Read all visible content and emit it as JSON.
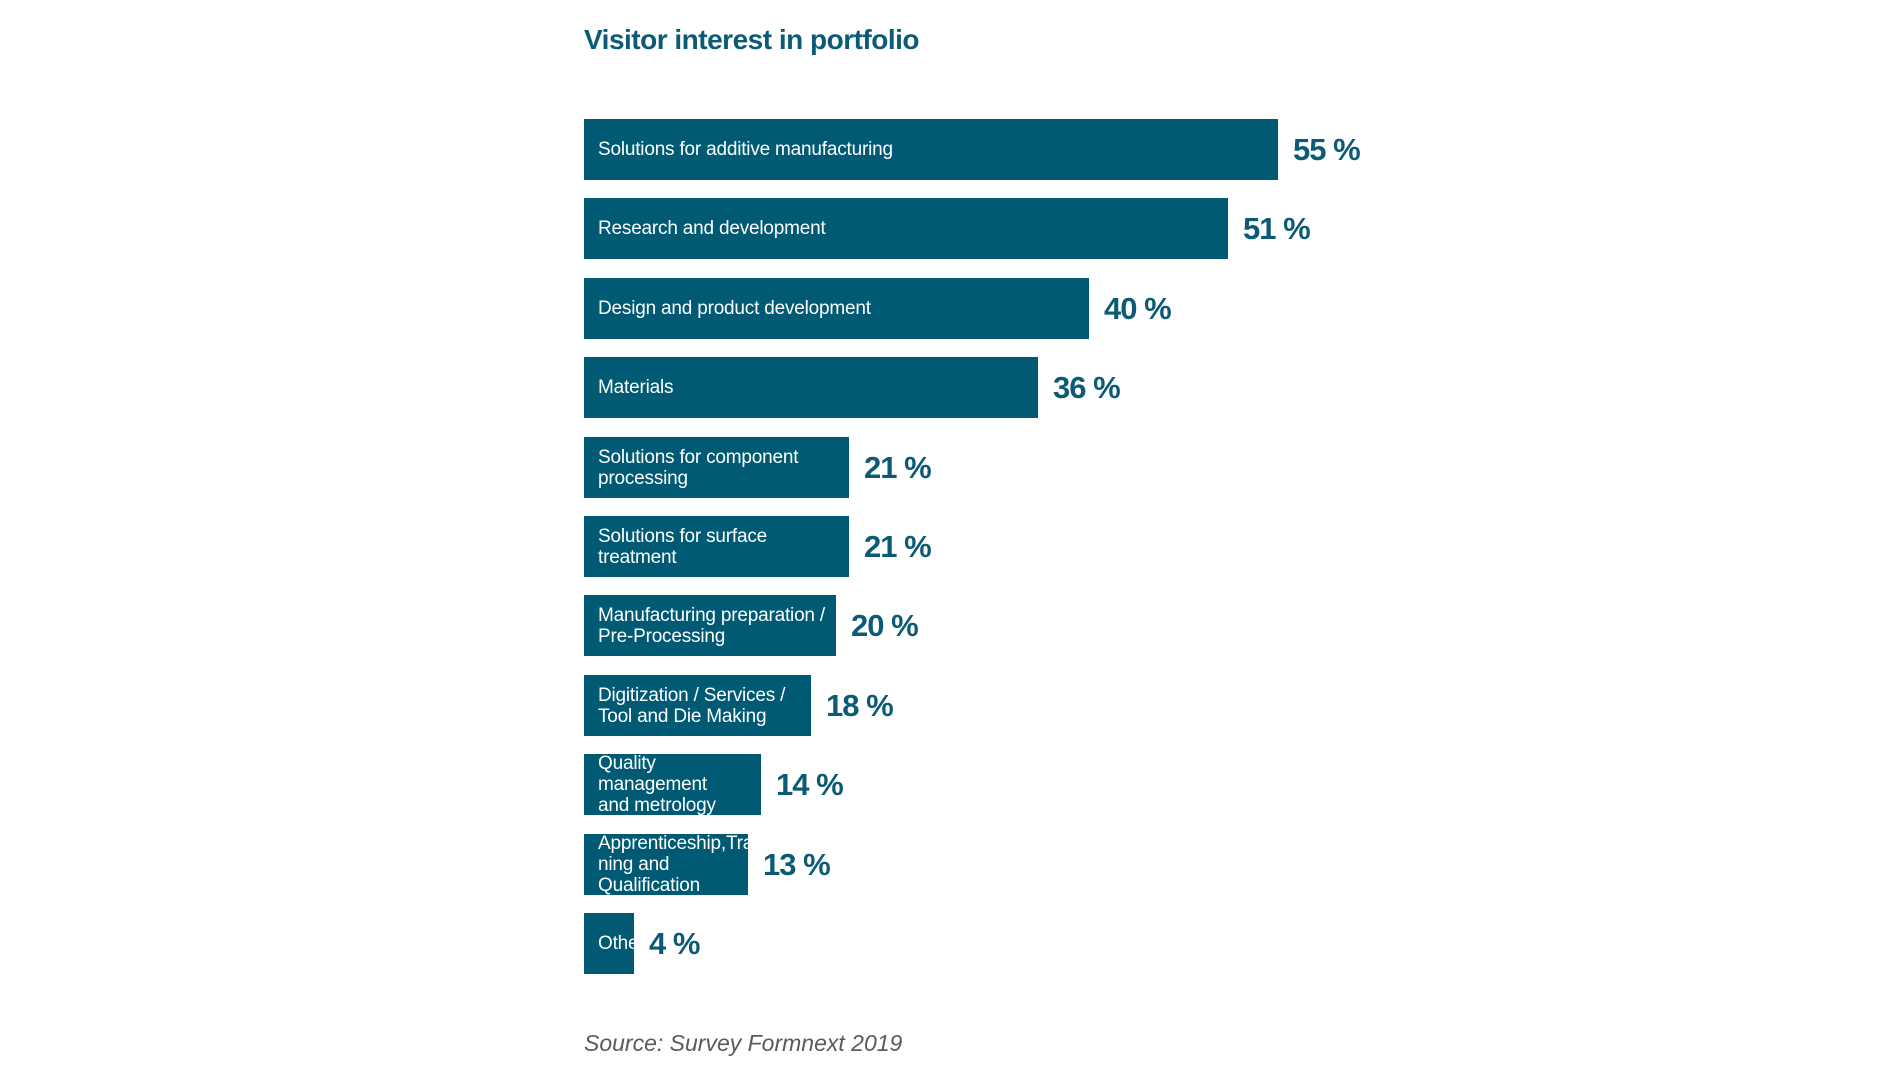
{
  "colors": {
    "bar": "#005a74",
    "title": "#0b5b76",
    "value": "#0b5b76",
    "source": "#5a5a5a"
  },
  "chart_data": {
    "type": "bar",
    "orientation": "horizontal",
    "title": "Visitor interest in portfolio",
    "source": "Source: Survey Formnext 2019",
    "unit": "%",
    "categories": [
      "Solutions for additive manufacturing",
      "Research and development",
      "Design and product development",
      "Materials",
      "Solutions for component processing",
      "Solutions for surface treatment",
      "Manufacturing preparation /\nPre-Processing",
      "Digitization / Services /\nTool and Die Making",
      "Quality management\nand metrology",
      "Apprenticeship,Trai-\nning and Qualification",
      "Other"
    ],
    "values": [
      55,
      51,
      40,
      36,
      21,
      21,
      20,
      18,
      14,
      13,
      4
    ],
    "value_labels": [
      "55 %",
      "51 %",
      "40 %",
      "36 %",
      "21 %",
      "21 %",
      "20 %",
      "18 %",
      "14 %",
      "13 %",
      "4 %"
    ],
    "xlabel": "",
    "ylabel": "",
    "grid": false,
    "legend": "none"
  }
}
